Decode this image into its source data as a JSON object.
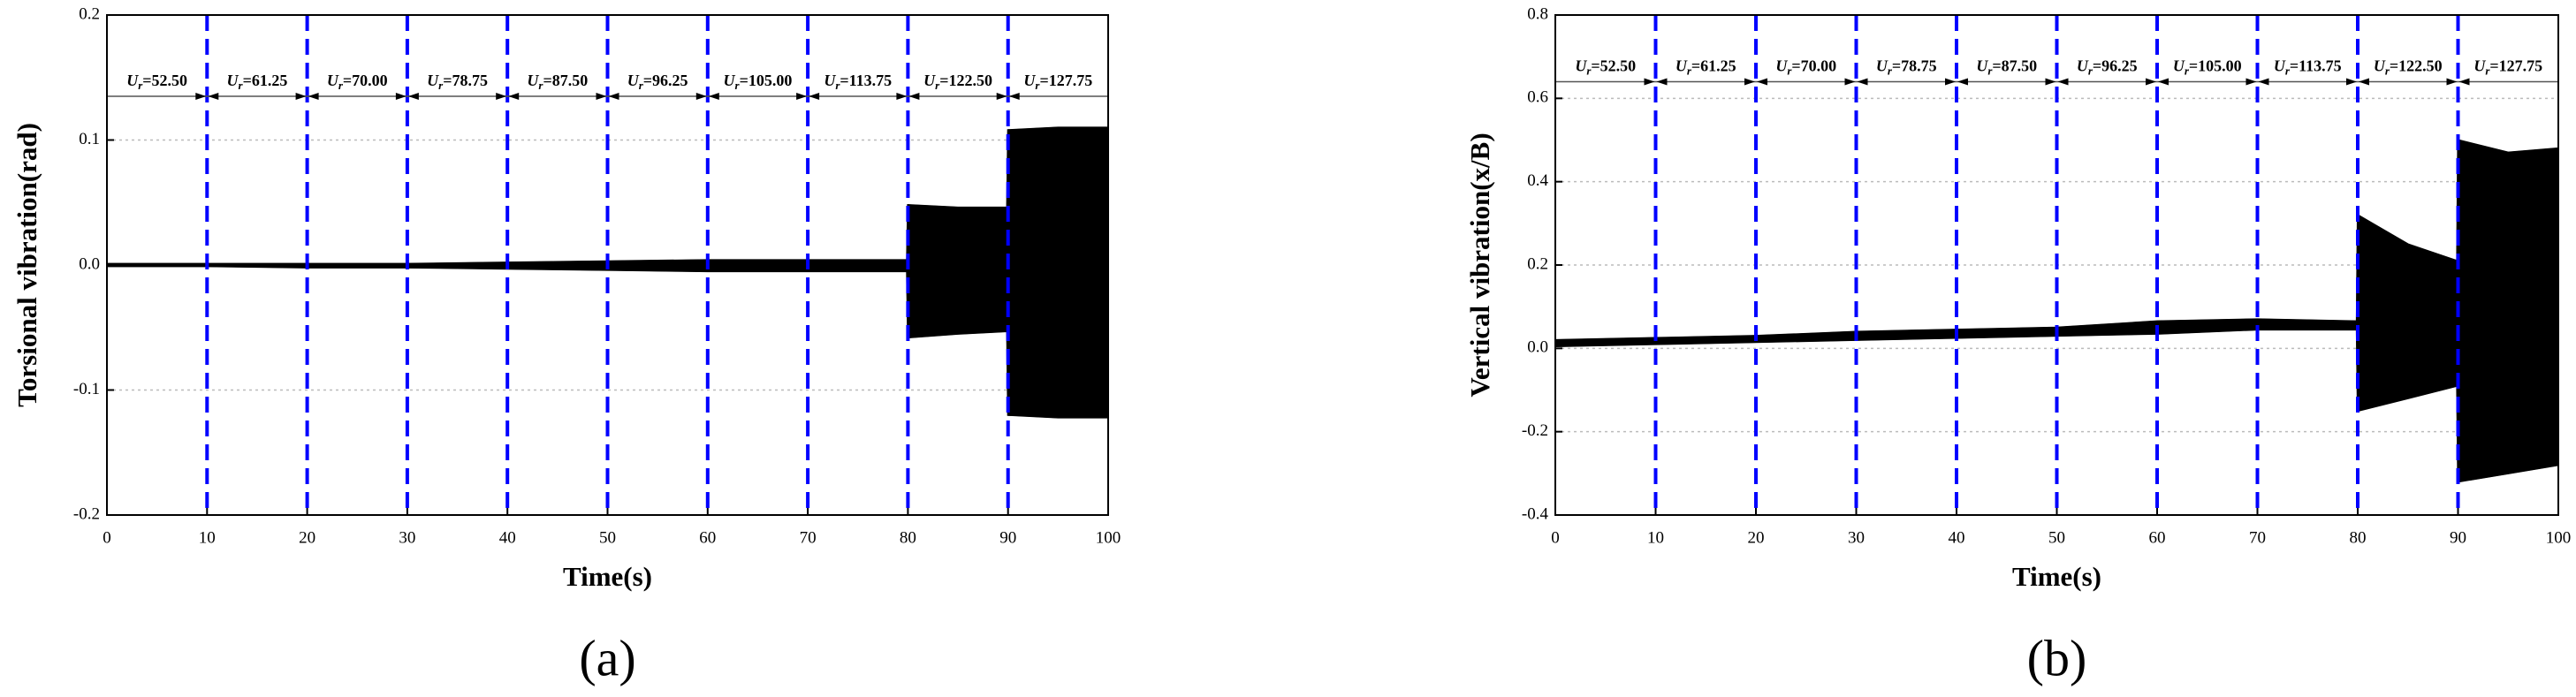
{
  "chart_data": [
    {
      "type": "band",
      "panel_label": "(a)",
      "xlabel": "Time(s)",
      "ylabel": "Torsional vibration(rad)",
      "x": [
        0,
        10,
        20,
        30,
        40,
        50,
        60,
        70,
        79.9,
        80,
        85,
        89.9,
        90,
        95,
        100
      ],
      "upper": [
        0.001,
        0.001,
        0.001,
        0.001,
        0.002,
        0.003,
        0.004,
        0.004,
        0.004,
        0.048,
        0.046,
        0.046,
        0.108,
        0.11,
        0.11
      ],
      "lower": [
        -0.001,
        -0.001,
        -0.002,
        -0.002,
        -0.003,
        -0.004,
        -0.005,
        -0.005,
        -0.005,
        -0.058,
        -0.055,
        -0.053,
        -0.12,
        -0.122,
        -0.122
      ],
      "color": "#000000",
      "xlim": [
        0,
        100
      ],
      "xticks": [
        0,
        10,
        20,
        30,
        40,
        50,
        60,
        70,
        80,
        90,
        100
      ],
      "ylim": [
        -0.2,
        0.2
      ],
      "yticks": [
        -0.2,
        -0.1,
        {
          "value": 0,
          "label": "0.0"
        },
        0.1,
        0.2
      ],
      "grid": true,
      "region_boundaries": [
        10,
        20,
        30,
        40,
        50,
        60,
        70,
        80,
        90
      ],
      "boundary_color": "#0000ff",
      "annotation_y": 0.135,
      "region_symbol": "U",
      "region_subscript": "r",
      "region_labels": [
        "=52.50",
        "=61.25",
        "=70.00",
        "=78.75",
        "=87.50",
        "=96.25",
        "=105.00",
        "=113.75",
        "=122.50",
        "=127.75"
      ]
    },
    {
      "type": "band",
      "panel_label": "(b)",
      "xlabel": "Time(s)",
      "ylabel": "Vertical vibration(x/B)",
      "x": [
        0,
        10,
        20,
        30,
        40,
        50,
        60,
        70,
        79.9,
        80,
        85,
        89.9,
        90,
        95,
        100
      ],
      "upper": [
        0.02,
        0.025,
        0.03,
        0.04,
        0.045,
        0.05,
        0.065,
        0.07,
        0.065,
        0.32,
        0.25,
        0.21,
        0.5,
        0.47,
        0.48
      ],
      "lower": [
        0.005,
        0.01,
        0.015,
        0.02,
        0.025,
        0.03,
        0.035,
        0.045,
        0.045,
        -0.15,
        -0.12,
        -0.09,
        -0.32,
        -0.3,
        -0.28
      ],
      "color": "#000000",
      "xlim": [
        0,
        100
      ],
      "xticks": [
        0,
        10,
        20,
        30,
        40,
        50,
        60,
        70,
        80,
        90,
        100
      ],
      "ylim": [
        -0.4,
        0.8
      ],
      "yticks": [
        -0.4,
        -0.2,
        {
          "value": 0,
          "label": "0.0"
        },
        0.2,
        0.4,
        0.6,
        0.8
      ],
      "grid": true,
      "region_boundaries": [
        10,
        20,
        30,
        40,
        50,
        60,
        70,
        80,
        90
      ],
      "boundary_color": "#0000ff",
      "annotation_y": 0.64,
      "region_symbol": "U",
      "region_subscript": "r",
      "region_labels": [
        "=52.50",
        "=61.25",
        "=70.00",
        "=78.75",
        "=87.50",
        "=96.25",
        "=105.00",
        "=113.75",
        "=122.50",
        "=127.75"
      ]
    }
  ]
}
